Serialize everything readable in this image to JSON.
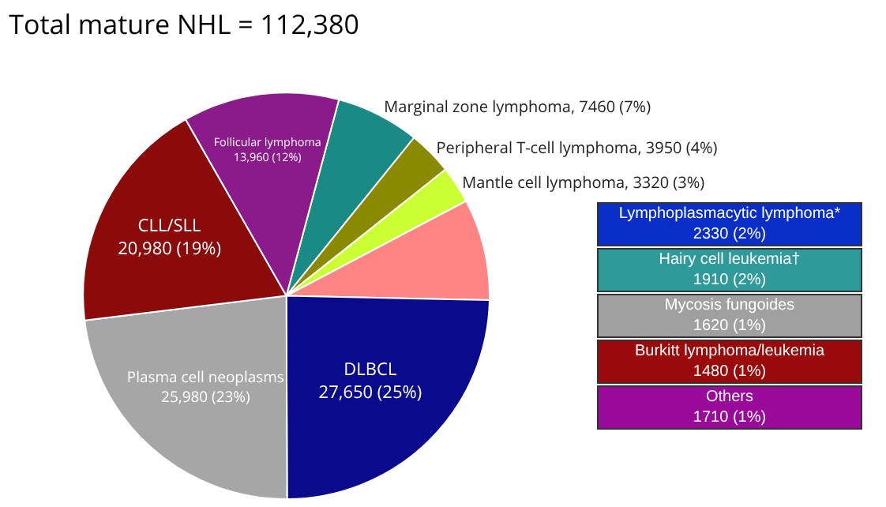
{
  "chart_data": [
    {
      "type": "pie",
      "title": "Total mature NHL = 112,380",
      "categories": [
        "Marginal zone lymphoma",
        "Peripheral T-cell lymphoma",
        "Mantle cell lymphoma",
        null,
        "DLBCL",
        "Plasma cell neoplasms",
        "CLL/SLL",
        "Follicular lymphoma"
      ],
      "values": [
        7460,
        3950,
        3320,
        9050,
        27650,
        25980,
        20980,
        13960
      ],
      "value_labels": [
        "7460 (7%)",
        "3950 (4%)",
        "3320 (3%)",
        null,
        "27,650 (25%)",
        "25,980 (23%)",
        "20,980 (19%)",
        "13,960 (12%)"
      ],
      "colors": [
        "#1a8a84",
        "#8a8a00",
        "#ccff33",
        "#ff8585",
        "#0a0a8c",
        "#a6a6a6",
        "#8b0a0a",
        "#8b1a8b"
      ]
    },
    {
      "type": "other",
      "categories": [
        "Lymphoplasmacytic lymphoma*",
        "Hairy cell leukemia†",
        "Mycosis fungoides",
        "Burkitt lymphoma/leukemia",
        "Others"
      ],
      "value_labels": [
        "2330 (2%)",
        "1910 (2%)",
        "1620 (1%)",
        "1480 (1%)",
        "1710 (1%)"
      ],
      "colors": [
        "#0a2fc8",
        "#2e9a9a",
        "#a0a0a0",
        "#9a0a0a",
        "#9a0a9a"
      ]
    }
  ]
}
